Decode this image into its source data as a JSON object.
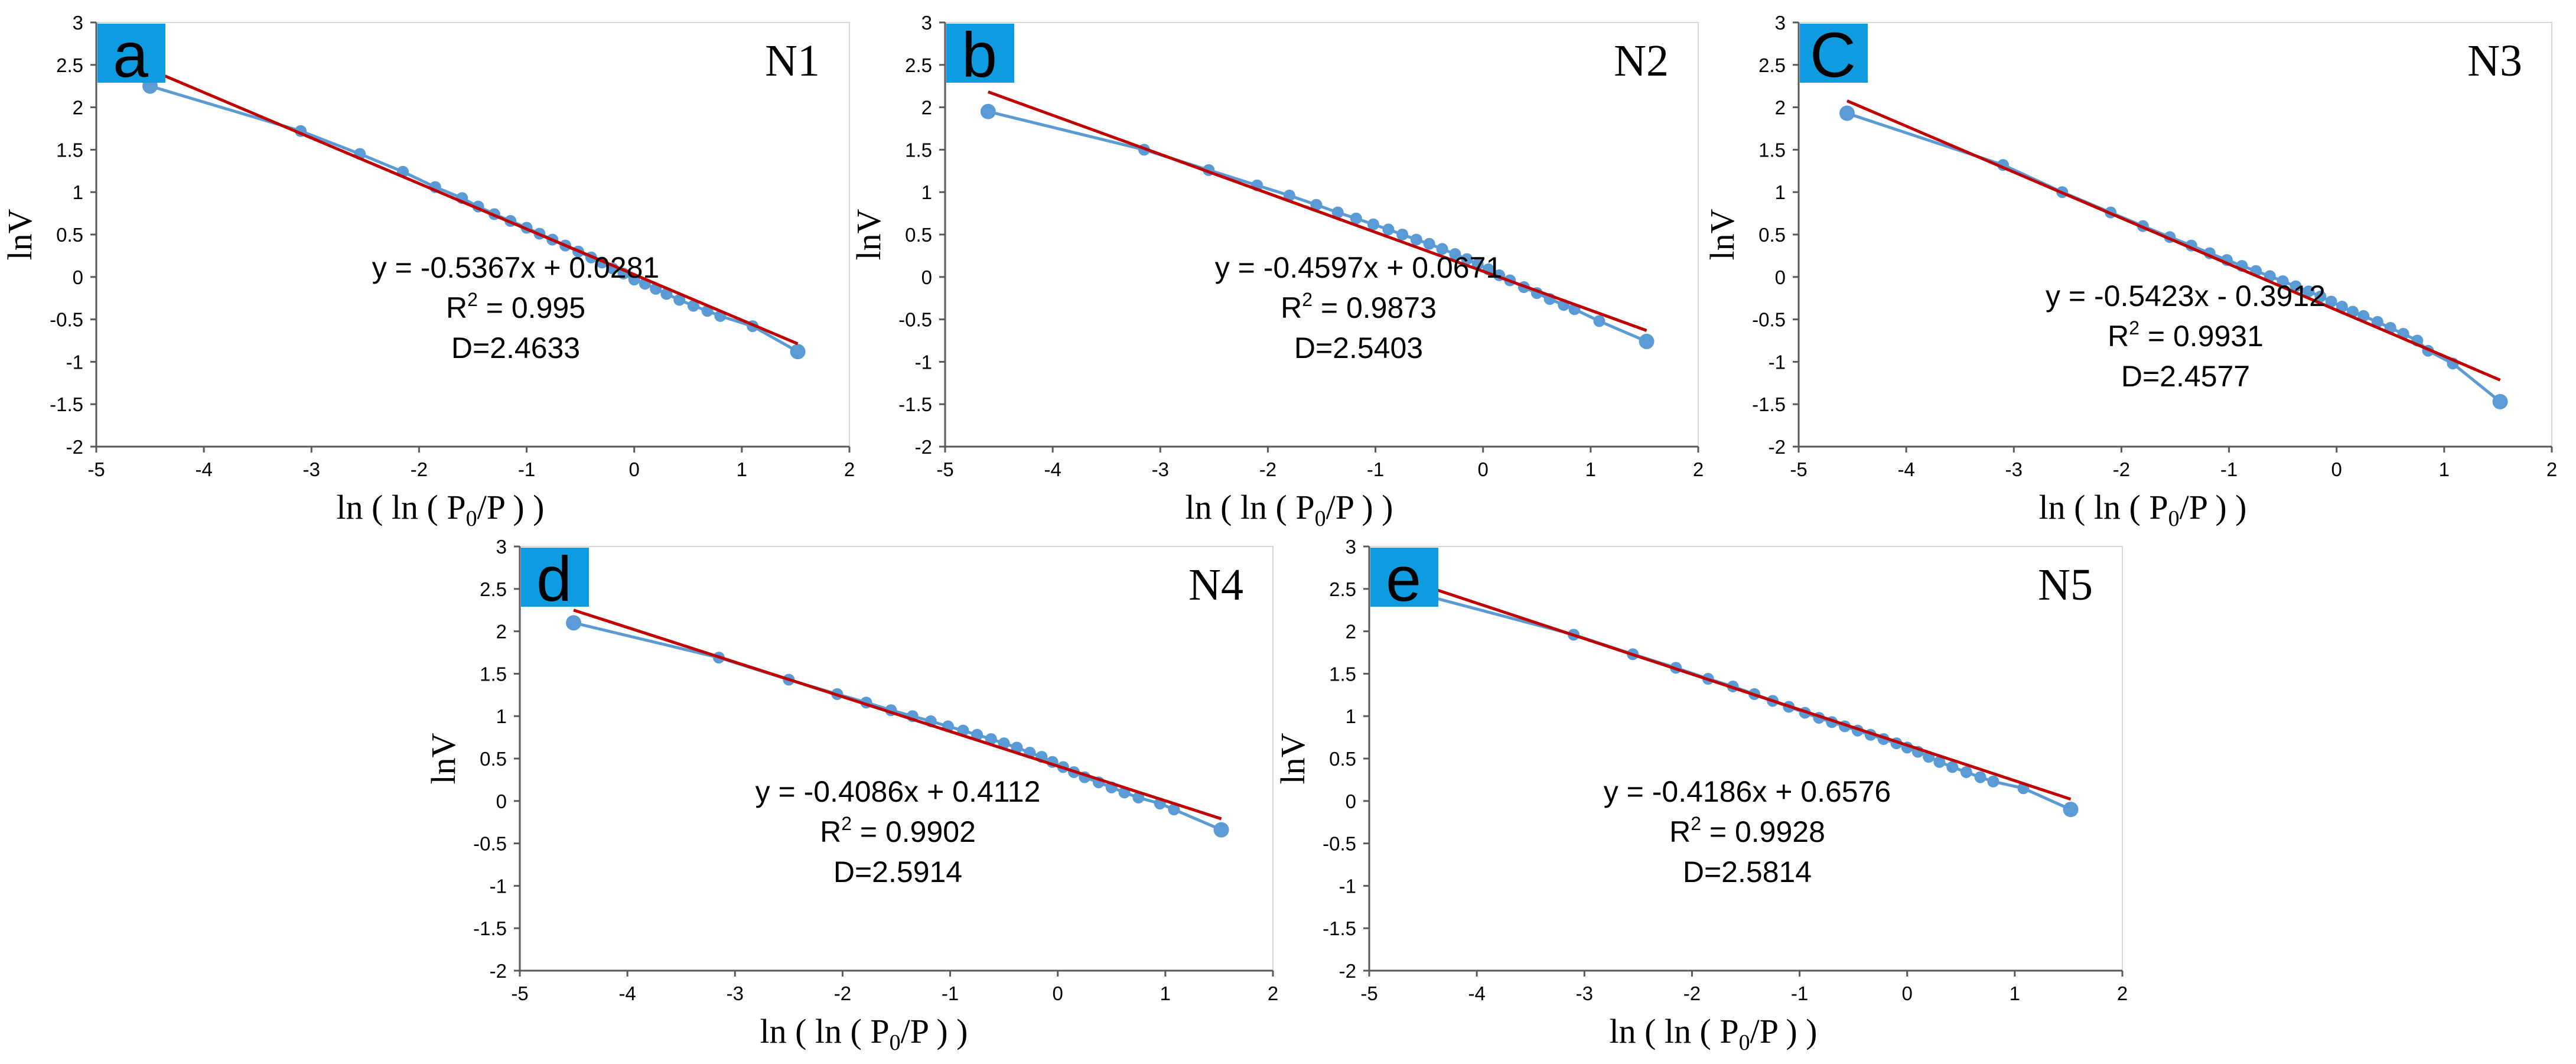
{
  "figure": {
    "colors": {
      "series": "#5b9bd5",
      "fit": "#c00000",
      "badge": "#0f9be0"
    },
    "x_axis_title": {
      "text": "ln ( ln ( P",
      "subscript": "0",
      "suffix": "/P ) )"
    },
    "y_axis_title": "lnV",
    "x_tick_labels": [
      "-5",
      "-4",
      "-3",
      "-2",
      "-1",
      "0",
      "1",
      "2"
    ],
    "y_tick_labels": [
      "3",
      "2.5",
      "2",
      "1.5",
      "1",
      "0.5",
      "0",
      "-0.5",
      "-1",
      "-1.5",
      "-2"
    ],
    "panels": [
      {
        "letter": "a",
        "sample": "N1",
        "equation": "y = -0.5367x + 0.0281",
        "r2_prefix": "R",
        "r2_sup": "2",
        "r2_value": " = 0.995",
        "fractal_dimension": "D=2.4633"
      },
      {
        "letter": "b",
        "sample": "N2",
        "equation": "y = -0.4597x + 0.0671",
        "r2_prefix": "R",
        "r2_sup": "2",
        "r2_value": " = 0.9873",
        "fractal_dimension": "D=2.5403"
      },
      {
        "letter": "C",
        "sample": "N3",
        "equation": "y = -0.5423x - 0.3912",
        "r2_prefix": "R",
        "r2_sup": "2",
        "r2_value": " = 0.9931",
        "fractal_dimension": "D=2.4577"
      },
      {
        "letter": "d",
        "sample": "N4",
        "equation": "y = -0.4086x + 0.4112",
        "r2_prefix": "R",
        "r2_sup": "2",
        "r2_value": " = 0.9902",
        "fractal_dimension": "D=2.5914"
      },
      {
        "letter": "e",
        "sample": "N5",
        "equation": "y = -0.4186x + 0.6576",
        "r2_prefix": "R",
        "r2_sup": "2",
        "r2_value": " = 0.9928",
        "fractal_dimension": "D=2.5814"
      }
    ]
  },
  "chart_data": [
    {
      "type": "line",
      "xlim": [
        -5,
        2
      ],
      "ylim": [
        -2,
        3
      ],
      "x_ticks": [
        -5,
        -4,
        -3,
        -2,
        -1,
        0,
        1,
        2
      ],
      "y_ticks": [
        -2,
        -1.5,
        -1,
        -0.5,
        0,
        0.5,
        1,
        1.5,
        2,
        2.5,
        3
      ],
      "xlabel": "ln ( ln ( P0/P ) )",
      "ylabel": "lnV",
      "grid": false,
      "x": [
        -4.5,
        -3.1,
        -2.55,
        -2.15,
        -1.85,
        -1.6,
        -1.45,
        -1.3,
        -1.15,
        -1.0,
        -0.88,
        -0.76,
        -0.64,
        -0.52,
        -0.4,
        -0.3,
        -0.2,
        -0.1,
        0.0,
        0.1,
        0.2,
        0.3,
        0.42,
        0.55,
        0.68,
        0.8,
        1.1,
        1.52
      ],
      "series": [
        {
          "values": [
            2.25,
            1.72,
            1.45,
            1.24,
            1.06,
            0.93,
            0.83,
            0.74,
            0.66,
            0.58,
            0.51,
            0.44,
            0.37,
            0.3,
            0.23,
            0.17,
            0.1,
            0.04,
            -0.03,
            -0.08,
            -0.14,
            -0.2,
            -0.27,
            -0.34,
            -0.4,
            -0.46,
            -0.58,
            -0.88
          ]
        }
      ],
      "fit_line": {
        "slope": -0.5367,
        "intercept": 0.0281,
        "x_range": [
          -4.55,
          1.52
        ]
      }
    },
    {
      "type": "line",
      "xlim": [
        -5,
        2
      ],
      "ylim": [
        -2,
        3
      ],
      "x_ticks": [
        -5,
        -4,
        -3,
        -2,
        -1,
        0,
        1,
        2
      ],
      "y_ticks": [
        -2,
        -1.5,
        -1,
        -0.5,
        0,
        0.5,
        1,
        1.5,
        2,
        2.5,
        3
      ],
      "xlabel": "ln ( ln ( P0/P ) )",
      "ylabel": "lnV",
      "grid": false,
      "x": [
        -4.6,
        -3.15,
        -2.55,
        -2.1,
        -1.8,
        -1.55,
        -1.35,
        -1.18,
        -1.02,
        -0.88,
        -0.75,
        -0.62,
        -0.5,
        -0.38,
        -0.26,
        -0.15,
        -0.05,
        0.05,
        0.15,
        0.25,
        0.38,
        0.5,
        0.62,
        0.75,
        0.85,
        1.08,
        1.52
      ],
      "series": [
        {
          "values": [
            1.95,
            1.5,
            1.26,
            1.08,
            0.96,
            0.85,
            0.76,
            0.69,
            0.62,
            0.56,
            0.5,
            0.44,
            0.39,
            0.33,
            0.27,
            0.21,
            0.15,
            0.09,
            0.02,
            -0.04,
            -0.12,
            -0.19,
            -0.26,
            -0.33,
            -0.38,
            -0.52,
            -0.76
          ]
        }
      ],
      "fit_line": {
        "slope": -0.4597,
        "intercept": 0.0671,
        "x_range": [
          -4.6,
          1.52
        ]
      }
    },
    {
      "type": "line",
      "xlim": [
        -5,
        2
      ],
      "ylim": [
        -2,
        3
      ],
      "x_ticks": [
        -5,
        -4,
        -3,
        -2,
        -1,
        0,
        1,
        2
      ],
      "y_ticks": [
        -2,
        -1.5,
        -1,
        -0.5,
        0,
        0.5,
        1,
        1.5,
        2,
        2.5,
        3
      ],
      "xlabel": "ln ( ln ( P0/P ) )",
      "ylabel": "lnV",
      "grid": false,
      "x": [
        -4.55,
        -3.1,
        -2.55,
        -2.1,
        -1.8,
        -1.55,
        -1.35,
        -1.18,
        -1.02,
        -0.88,
        -0.75,
        -0.62,
        -0.5,
        -0.38,
        -0.26,
        -0.15,
        -0.05,
        0.05,
        0.15,
        0.25,
        0.38,
        0.5,
        0.62,
        0.75,
        0.85,
        1.08,
        1.52
      ],
      "series": [
        {
          "values": [
            1.93,
            1.32,
            1.0,
            0.76,
            0.6,
            0.47,
            0.37,
            0.28,
            0.2,
            0.13,
            0.07,
            0.01,
            -0.05,
            -0.11,
            -0.17,
            -0.23,
            -0.29,
            -0.35,
            -0.41,
            -0.46,
            -0.53,
            -0.6,
            -0.67,
            -0.75,
            -0.87,
            -1.02,
            -1.47
          ]
        }
      ],
      "fit_line": {
        "slope": -0.5423,
        "intercept": -0.3912,
        "x_range": [
          -4.55,
          1.52
        ]
      }
    },
    {
      "type": "line",
      "xlim": [
        -5,
        2
      ],
      "ylim": [
        -2,
        3
      ],
      "x_ticks": [
        -5,
        -4,
        -3,
        -2,
        -1,
        0,
        1,
        2
      ],
      "y_ticks": [
        -2,
        -1.5,
        -1,
        -0.5,
        0,
        0.5,
        1,
        1.5,
        2,
        2.5,
        3
      ],
      "xlabel": "ln ( ln ( P0/P ) )",
      "ylabel": "lnV",
      "grid": false,
      "x": [
        -4.5,
        -3.15,
        -2.5,
        -2.05,
        -1.78,
        -1.55,
        -1.35,
        -1.18,
        -1.02,
        -0.88,
        -0.75,
        -0.62,
        -0.5,
        -0.38,
        -0.26,
        -0.15,
        -0.05,
        0.05,
        0.15,
        0.25,
        0.38,
        0.5,
        0.62,
        0.75,
        0.95,
        1.08,
        1.52
      ],
      "series": [
        {
          "values": [
            2.1,
            1.69,
            1.43,
            1.26,
            1.16,
            1.07,
            1.0,
            0.94,
            0.88,
            0.83,
            0.78,
            0.73,
            0.68,
            0.63,
            0.57,
            0.52,
            0.46,
            0.4,
            0.34,
            0.28,
            0.22,
            0.16,
            0.1,
            0.04,
            -0.03,
            -0.1,
            -0.34
          ]
        }
      ],
      "fit_line": {
        "slope": -0.4086,
        "intercept": 0.4112,
        "x_range": [
          -4.5,
          1.52
        ]
      }
    },
    {
      "type": "line",
      "xlim": [
        -5,
        2
      ],
      "ylim": [
        -2,
        3
      ],
      "x_ticks": [
        -5,
        -4,
        -3,
        -2,
        -1,
        0,
        1,
        2
      ],
      "y_ticks": [
        -2,
        -1.5,
        -1,
        -0.5,
        0,
        0.5,
        1,
        1.5,
        2,
        2.5,
        3
      ],
      "xlabel": "ln ( ln ( P0/P ) )",
      "ylabel": "lnV",
      "grid": false,
      "x": [
        -4.5,
        -3.1,
        -2.55,
        -2.15,
        -1.85,
        -1.62,
        -1.42,
        -1.25,
        -1.1,
        -0.95,
        -0.82,
        -0.7,
        -0.58,
        -0.46,
        -0.34,
        -0.22,
        -0.1,
        0.0,
        0.1,
        0.2,
        0.3,
        0.42,
        0.55,
        0.68,
        0.8,
        1.08,
        1.52
      ],
      "series": [
        {
          "values": [
            2.43,
            1.96,
            1.73,
            1.57,
            1.44,
            1.35,
            1.26,
            1.18,
            1.11,
            1.04,
            0.98,
            0.93,
            0.88,
            0.83,
            0.78,
            0.73,
            0.68,
            0.63,
            0.58,
            0.52,
            0.46,
            0.4,
            0.34,
            0.28,
            0.23,
            0.15,
            -0.1
          ]
        }
      ],
      "fit_line": {
        "slope": -0.4186,
        "intercept": 0.6576,
        "x_range": [
          -4.5,
          1.52
        ]
      }
    }
  ]
}
